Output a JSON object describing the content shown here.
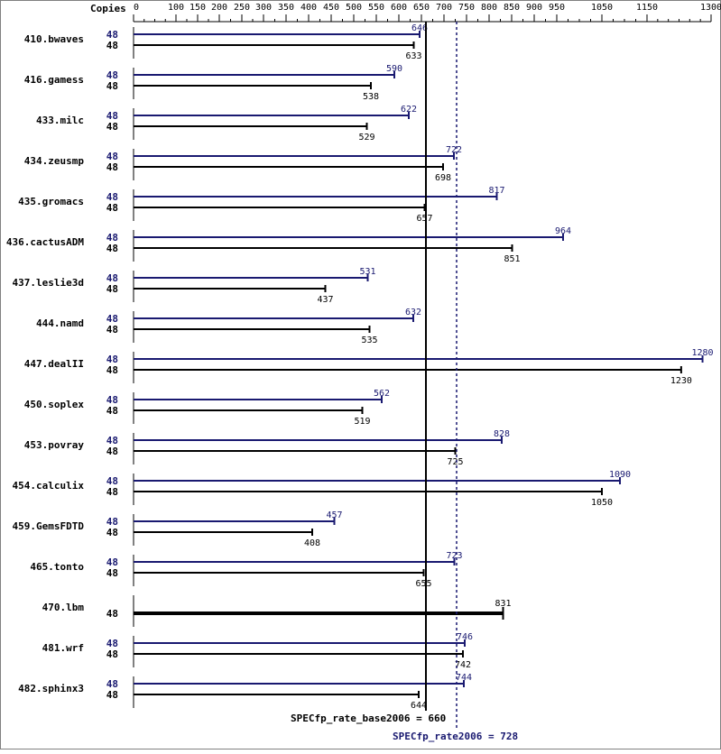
{
  "chart_data": {
    "type": "bar",
    "orientation": "horizontal",
    "copies_header": "Copies",
    "x_ticks": [
      0,
      100,
      150,
      200,
      250,
      300,
      350,
      400,
      450,
      500,
      550,
      600,
      650,
      700,
      750,
      800,
      850,
      900,
      950,
      1050,
      1150,
      1300
    ],
    "xlim": [
      0,
      1300
    ],
    "colors": {
      "peak": "#191970",
      "base": "#000000"
    },
    "series": [
      {
        "name": "",
        "key": "peak"
      },
      {
        "name": "",
        "key": "base"
      }
    ],
    "benchmarks": [
      {
        "name": "410.bwaves",
        "peak_copies": "48",
        "peak": 646,
        "base_copies": "48",
        "base": 633
      },
      {
        "name": "416.gamess",
        "peak_copies": "48",
        "peak": 590,
        "base_copies": "48",
        "base": 538
      },
      {
        "name": "433.milc",
        "peak_copies": "48",
        "peak": 622,
        "base_copies": "48",
        "base": 529
      },
      {
        "name": "434.zeusmp",
        "peak_copies": "48",
        "peak": 722,
        "base_copies": "48",
        "base": 698
      },
      {
        "name": "435.gromacs",
        "peak_copies": "48",
        "peak": 817,
        "base_copies": "48",
        "base": 657
      },
      {
        "name": "436.cactusADM",
        "peak_copies": "48",
        "peak": 964,
        "base_copies": "48",
        "base": 851
      },
      {
        "name": "437.leslie3d",
        "peak_copies": "48",
        "peak": 531,
        "base_copies": "48",
        "base": 437
      },
      {
        "name": "444.namd",
        "peak_copies": "48",
        "peak": 632,
        "base_copies": "48",
        "base": 535
      },
      {
        "name": "447.dealII",
        "peak_copies": "48",
        "peak": 1280,
        "base_copies": "48",
        "base": 1230
      },
      {
        "name": "450.soplex",
        "peak_copies": "48",
        "peak": 562,
        "base_copies": "48",
        "base": 519
      },
      {
        "name": "453.povray",
        "peak_copies": "48",
        "peak": 828,
        "base_copies": "48",
        "base": 725
      },
      {
        "name": "454.calculix",
        "peak_copies": "48",
        "peak": 1090,
        "base_copies": "48",
        "base": 1050
      },
      {
        "name": "459.GemsFDTD",
        "peak_copies": "48",
        "peak": 457,
        "base_copies": "48",
        "base": 408
      },
      {
        "name": "465.tonto",
        "peak_copies": "48",
        "peak": 723,
        "base_copies": "48",
        "base": 655
      },
      {
        "name": "470.lbm",
        "peak_copies": null,
        "peak": null,
        "base_copies": "48",
        "base": 831
      },
      {
        "name": "481.wrf",
        "peak_copies": "48",
        "peak": 746,
        "base_copies": "48",
        "base": 742
      },
      {
        "name": "482.sphinx3",
        "peak_copies": "48",
        "peak": 744,
        "base_copies": "48",
        "base": 644
      }
    ],
    "summary": {
      "base_label": "SPECfp_rate_base2006 = 660",
      "base_value": 660,
      "peak_label": "SPECfp_rate2006 = 728",
      "peak_value": 728
    }
  }
}
